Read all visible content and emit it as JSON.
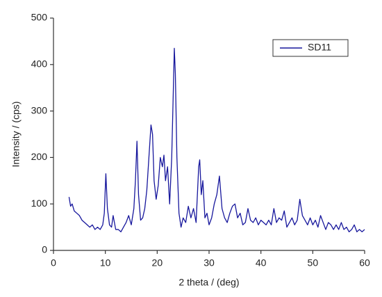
{
  "chart_data": {
    "type": "line",
    "xlabel": "2 theta / (deg)",
    "ylabel": "Intensity / (cps)",
    "x": [
      3,
      3.3,
      3.6,
      4,
      4.5,
      5,
      5.5,
      6,
      6.5,
      7,
      7.5,
      8,
      8.5,
      9,
      9.5,
      9.8,
      10.1,
      10.4,
      10.8,
      11.2,
      11.5,
      12,
      12.5,
      13,
      13.5,
      14,
      14.5,
      15,
      15.5,
      15.8,
      16.1,
      16.4,
      16.8,
      17.2,
      17.6,
      18,
      18.4,
      18.8,
      19.1,
      19.4,
      19.8,
      20.2,
      20.6,
      21,
      21.3,
      21.6,
      22,
      22.4,
      22.8,
      23.1,
      23.3,
      23.5,
      23.8,
      24.2,
      24.6,
      25,
      25.5,
      26,
      26.5,
      27,
      27.5,
      28,
      28.2,
      28.5,
      28.8,
      29.2,
      29.6,
      30,
      30.5,
      31,
      31.5,
      32,
      32.5,
      33,
      33.5,
      34,
      34.5,
      35,
      35.5,
      36,
      36.5,
      37,
      37.5,
      38,
      38.5,
      39,
      39.5,
      40,
      40.5,
      41,
      41.5,
      42,
      42.5,
      43,
      43.5,
      44,
      44.5,
      45,
      45.5,
      46,
      46.5,
      47,
      47.5,
      48,
      48.5,
      49,
      49.5,
      50,
      50.5,
      51,
      51.5,
      52,
      52.5,
      53,
      53.5,
      54,
      54.5,
      55,
      55.5,
      56,
      56.5,
      57,
      57.5,
      58,
      58.5,
      59,
      59.5,
      60
    ],
    "series": [
      {
        "name": "SD11",
        "color": "#16169c",
        "values": [
          115,
          95,
          100,
          85,
          80,
          75,
          65,
          60,
          55,
          50,
          55,
          45,
          50,
          45,
          55,
          80,
          165,
          90,
          55,
          50,
          75,
          45,
          45,
          40,
          50,
          60,
          75,
          55,
          90,
          150,
          235,
          120,
          65,
          70,
          90,
          130,
          200,
          270,
          250,
          150,
          110,
          140,
          200,
          180,
          205,
          150,
          180,
          100,
          200,
          340,
          435,
          380,
          200,
          80,
          50,
          70,
          60,
          95,
          70,
          90,
          60,
          180,
          195,
          120,
          150,
          70,
          80,
          55,
          70,
          100,
          120,
          160,
          90,
          70,
          60,
          80,
          95,
          100,
          70,
          80,
          55,
          60,
          90,
          65,
          60,
          70,
          55,
          65,
          60,
          55,
          65,
          55,
          90,
          60,
          70,
          65,
          85,
          50,
          60,
          70,
          55,
          65,
          110,
          75,
          65,
          55,
          70,
          55,
          65,
          50,
          75,
          60,
          45,
          60,
          55,
          45,
          55,
          45,
          60,
          45,
          50,
          40,
          45,
          55,
          40,
          45,
          40,
          45
        ]
      }
    ],
    "xlim": [
      0,
      60
    ],
    "xticks": [
      0,
      10,
      20,
      30,
      40,
      50,
      60
    ],
    "ylim": [
      0,
      500
    ],
    "yticks": [
      0,
      100,
      200,
      300,
      400,
      500
    ],
    "legend": "upper right"
  }
}
